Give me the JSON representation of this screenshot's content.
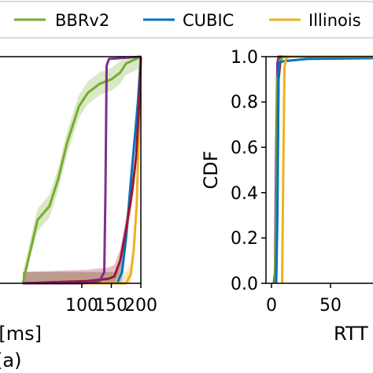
{
  "legend": {
    "entries": [
      {
        "label": "BBRv2",
        "color": "#77ac30"
      },
      {
        "label": "CUBIC",
        "color": "#0072bd"
      },
      {
        "label": "Illinois",
        "color": "#edb120"
      }
    ]
  },
  "caption": "(a)",
  "chart_data": [
    {
      "type": "line",
      "xlabel": "RTT [ms]",
      "ylabel": "",
      "x_ticks": [
        "100",
        "150",
        "200"
      ],
      "y_ticks": [],
      "xlim": [
        0,
        200
      ],
      "ylim": [
        0,
        1.0
      ],
      "series": [
        {
          "name": "BBRv2",
          "color": "#77ac30",
          "band": true,
          "x": [
            0,
            25,
            45,
            60,
            75,
            95,
            110,
            130,
            150,
            165,
            175,
            200
          ],
          "y": [
            0.0,
            0.28,
            0.34,
            0.46,
            0.62,
            0.78,
            0.84,
            0.88,
            0.9,
            0.93,
            0.97,
            1.0
          ]
        },
        {
          "name": "CUBIC",
          "color": "#0072bd",
          "band": true,
          "x": [
            0,
            160,
            168,
            175,
            183,
            190,
            195,
            200
          ],
          "y": [
            0.0,
            0.0,
            0.05,
            0.2,
            0.45,
            0.65,
            0.8,
            1.0
          ]
        },
        {
          "name": "Illinois",
          "color": "#edb120",
          "band": true,
          "x": [
            0,
            175,
            183,
            188,
            193,
            197,
            200
          ],
          "y": [
            0.0,
            0.0,
            0.04,
            0.15,
            0.35,
            0.7,
            1.0
          ]
        },
        {
          "name": "",
          "color": "#a2142f",
          "band": true,
          "x": [
            0,
            110,
            145,
            155,
            165,
            175,
            185,
            192,
            197,
            200
          ],
          "y": [
            0.0,
            0.01,
            0.02,
            0.03,
            0.1,
            0.24,
            0.4,
            0.56,
            0.78,
            1.0
          ]
        },
        {
          "name": "",
          "color": "#7e2f8e",
          "band": false,
          "x": [
            0,
            100,
            130,
            138,
            140,
            142,
            146,
            200
          ],
          "y": [
            0.0,
            0.0,
            0.01,
            0.05,
            0.4,
            0.96,
            0.99,
            1.0
          ]
        }
      ]
    },
    {
      "type": "line",
      "xlabel": "RTT",
      "ylabel": "CDF",
      "x_ticks": [
        "0",
        "50"
      ],
      "y_ticks": [
        "0.0",
        "0.2",
        "0.4",
        "0.6",
        "0.8",
        "1.0"
      ],
      "xlim": [
        0,
        100
      ],
      "ylim": [
        0,
        1.0
      ],
      "series": [
        {
          "name": "",
          "color": "#7e2f8e",
          "x": [
            2,
            3,
            4,
            5,
            6,
            200
          ],
          "y": [
            0.0,
            0.05,
            0.6,
            0.97,
            1.0,
            1.0
          ]
        },
        {
          "name": "",
          "color": "#a2142f",
          "x": [
            3,
            4,
            5,
            6,
            8,
            200
          ],
          "y": [
            0.0,
            0.05,
            0.4,
            0.9,
            1.0,
            1.0
          ]
        },
        {
          "name": "BBRv2",
          "color": "#77ac30",
          "x": [
            3,
            4,
            5,
            7,
            10,
            200
          ],
          "y": [
            0.0,
            0.3,
            0.9,
            0.98,
            1.0,
            1.0
          ]
        },
        {
          "name": "CUBIC",
          "color": "#0072bd",
          "x": [
            4,
            5,
            6,
            7,
            10,
            20,
            30,
            200
          ],
          "y": [
            0.0,
            0.3,
            0.95,
            0.975,
            0.98,
            0.985,
            0.99,
            1.0
          ]
        },
        {
          "name": "Illinois",
          "color": "#edb120",
          "x": [
            9,
            10,
            11,
            12,
            15,
            200
          ],
          "y": [
            0.0,
            0.5,
            0.95,
            0.99,
            1.0,
            1.0
          ]
        }
      ]
    }
  ]
}
